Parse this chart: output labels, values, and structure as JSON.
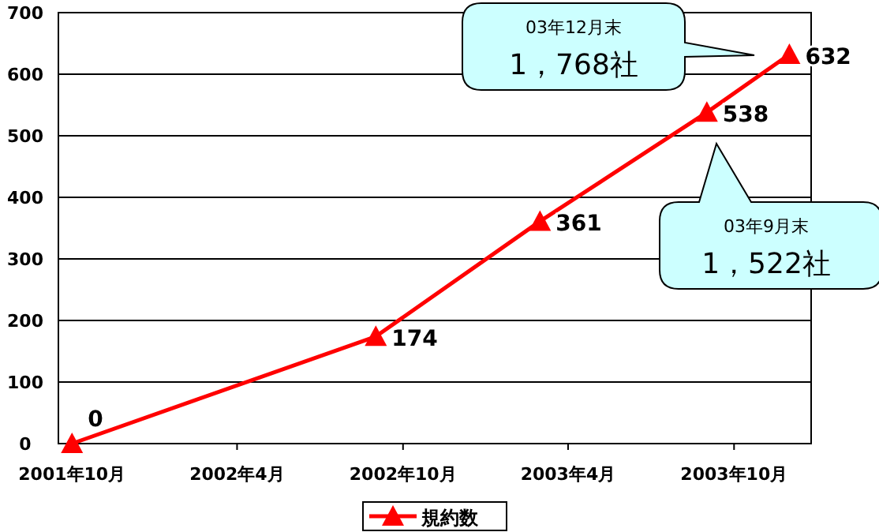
{
  "chart_data": {
    "type": "line",
    "x": [
      "2001-10",
      "2002-09",
      "2003-03",
      "2003-09",
      "2003-12"
    ],
    "series": [
      {
        "name": "規約数",
        "color": "#ff0000",
        "values": [
          0,
          174,
          361,
          538,
          632
        ]
      }
    ],
    "xlim": [
      "2001-09-16",
      "2003-12-25"
    ],
    "xticks": [
      {
        "value": "2001-10",
        "label": "2001年10月"
      },
      {
        "value": "2002-04",
        "label": "2002年4月"
      },
      {
        "value": "2002-10",
        "label": "2002年10月"
      },
      {
        "value": "2003-04",
        "label": "2003年4月"
      },
      {
        "value": "2003-10",
        "label": "2003年10月"
      }
    ],
    "ylim": [
      0,
      700
    ],
    "yticks": [
      0,
      100,
      200,
      300,
      400,
      500,
      600,
      700
    ],
    "grid": "y",
    "marker": "triangle",
    "line_style": "solid",
    "data_labels": true,
    "legend": "bottom",
    "annotations": [
      "03年12月末\n1，768社",
      "03年9月末\n1，522社"
    ]
  }
}
